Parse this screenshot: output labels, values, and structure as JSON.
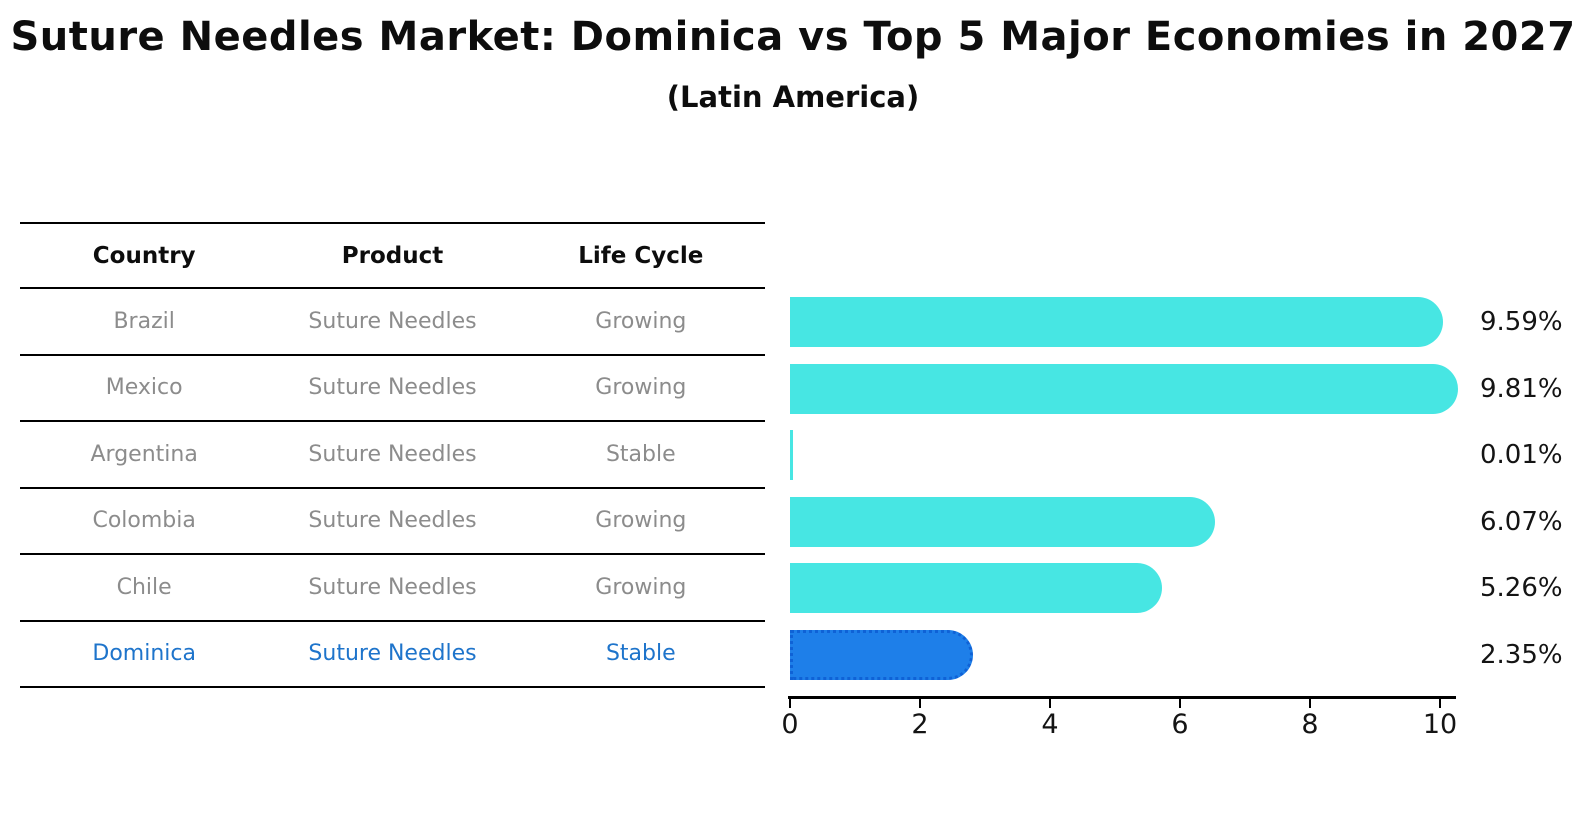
{
  "title": "Suture Needles Market: Dominica vs Top 5 Major Economies in 2027",
  "subtitle": "(Latin America)",
  "table": {
    "headers": [
      "Country",
      "Product",
      "Life Cycle"
    ],
    "rows": [
      {
        "country": "Brazil",
        "product": "Suture Needles",
        "life_cycle": "Growing",
        "highlighted": false
      },
      {
        "country": "Mexico",
        "product": "Suture Needles",
        "life_cycle": "Growing",
        "highlighted": false
      },
      {
        "country": "Argentina",
        "product": "Suture Needles",
        "life_cycle": "Stable",
        "highlighted": false
      },
      {
        "country": "Colombia",
        "product": "Suture Needles",
        "life_cycle": "Growing",
        "highlighted": false
      },
      {
        "country": "Chile",
        "product": "Suture Needles",
        "life_cycle": "Growing",
        "highlighted": false
      },
      {
        "country": "Dominica",
        "product": "Suture Needles",
        "life_cycle": "Stable",
        "highlighted": true
      }
    ]
  },
  "chart_data": {
    "type": "bar",
    "orientation": "horizontal",
    "title": "Suture Needles Market: Dominica vs Top 5 Major Economies in 2027",
    "subtitle": "(Latin America)",
    "categories": [
      "Brazil",
      "Mexico",
      "Argentina",
      "Colombia",
      "Chile",
      "Dominica"
    ],
    "values": [
      9.59,
      9.81,
      0.01,
      6.07,
      5.26,
      2.35
    ],
    "value_labels": [
      "9.59%",
      "9.81%",
      "0.01%",
      "6.07%",
      "5.26%",
      "2.35%"
    ],
    "xlabel": "",
    "ylabel": "",
    "xlim": [
      0,
      10
    ],
    "xticks": [
      0,
      2,
      4,
      6,
      8,
      10
    ],
    "grid": false,
    "legend": false,
    "bar_color": "#47e6e3",
    "highlight_index": 5,
    "highlight_color": "#1e7fe9",
    "highlight_border_color": "#0f62d6",
    "highlight_text_color": "#1e74cb"
  }
}
